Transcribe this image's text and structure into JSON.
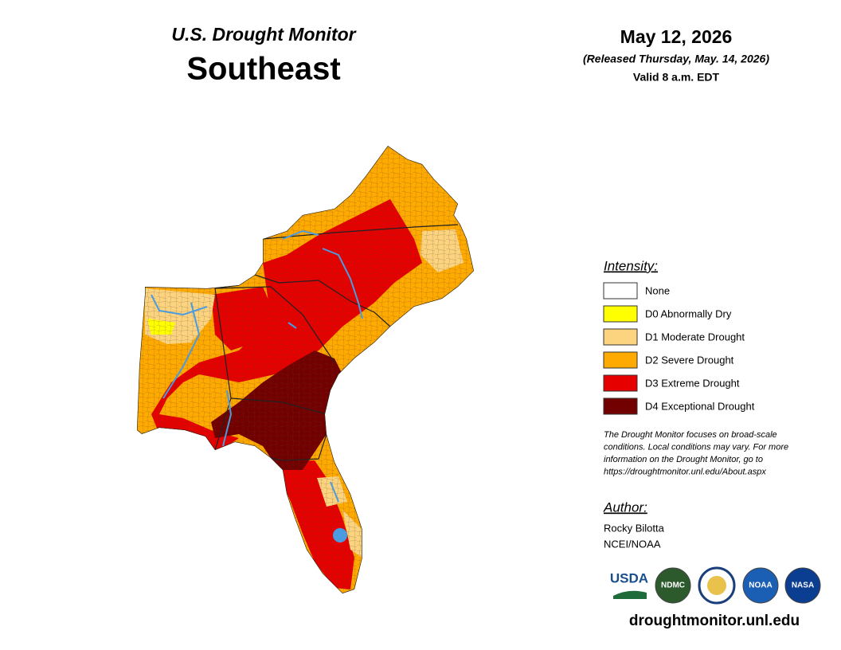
{
  "header": {
    "title": "U.S. Drought Monitor",
    "region": "Southeast",
    "date": "May 12, 2026",
    "released": "(Released Thursday, May. 14, 2026)",
    "valid": "Valid 8 a.m. EDT"
  },
  "legend": {
    "title": "Intensity:",
    "items": [
      {
        "label": "None",
        "color": "#ffffff"
      },
      {
        "label": "D0 Abnormally Dry",
        "color": "#ffff00"
      },
      {
        "label": "D1 Moderate Drought",
        "color": "#fcd37f"
      },
      {
        "label": "D2 Severe Drought",
        "color": "#ffaa00"
      },
      {
        "label": "D3 Extreme Drought",
        "color": "#e60000"
      },
      {
        "label": "D4 Exceptional Drought",
        "color": "#730000"
      }
    ]
  },
  "note": [
    "The Drought Monitor focuses on broad-scale",
    "conditions. Local conditions may vary. For more",
    "information on the Drought Monitor, go to",
    "https://droughtmonitor.unl.edu/About.aspx"
  ],
  "author": {
    "title": "Author:",
    "names": [
      "Rocky Bilotta",
      "NCEI/NOAA"
    ]
  },
  "logos": [
    "USDA",
    "NDMC",
    "NOAA",
    "NASA"
  ],
  "url": "droughtmonitor.unl.edu"
}
